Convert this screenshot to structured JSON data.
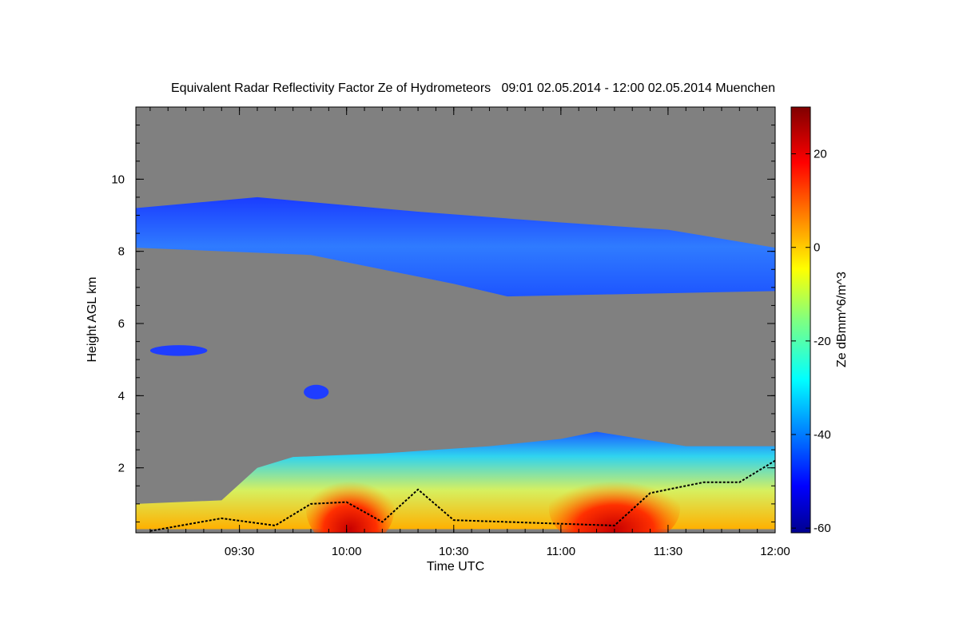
{
  "chart_data": {
    "type": "heatmap",
    "title": "Equivalent Radar Reflectivity Factor Ze of Hydrometeors   09:01 02.05.2014 - 12:00 02.05.2014 Muenchen",
    "xlabel": "Time UTC",
    "ylabel": "Height AGL km",
    "colorbar_label": "Ze dBmm^6/m^3",
    "x_range": [
      "09:01",
      "12:00"
    ],
    "x_ticks": [
      "09:30",
      "10:00",
      "10:30",
      "11:00",
      "11:30",
      "12:00"
    ],
    "y_range": [
      0.2,
      12
    ],
    "y_ticks": [
      2,
      4,
      6,
      8,
      10
    ],
    "colorbar_range": [
      -61,
      30
    ],
    "colorbar_ticks": [
      20,
      0,
      -20,
      -40,
      -60
    ],
    "colorbar_tick_labels": [
      "20",
      "0",
      "-20",
      "-40",
      "-60"
    ],
    "colormap": "jet",
    "background_color": "#808080",
    "regions": [
      {
        "name": "upper cloud layer",
        "time_start": "09:01",
        "time_end": "12:00",
        "base_km_start": 8.1,
        "base_km_end": 6.9,
        "top_km_start": 9.2,
        "top_km_end": 8.1,
        "ze_dbz_typical": -45
      },
      {
        "name": "small cloud",
        "time_start": "09:05",
        "time_end": "09:21",
        "base_km": 5.1,
        "top_km": 5.4,
        "ze_dbz_typical": -52
      },
      {
        "name": "small cloud",
        "time_start": "09:48",
        "time_end": "09:55",
        "base_km": 3.9,
        "top_km": 4.3,
        "ze_dbz_typical": -52
      },
      {
        "name": "low precipitation layer",
        "time_start": "09:01",
        "time_end": "12:00",
        "base_km": 0.3,
        "top_km_max": 3.0,
        "ze_dbz_max": 25
      },
      {
        "name": "precipitation core",
        "time_start": "09:52",
        "time_end": "10:10",
        "ze_dbz_typical": 15
      },
      {
        "name": "precipitation core",
        "time_start": "11:00",
        "time_end": "11:30",
        "ze_dbz_typical": 20
      }
    ],
    "black_line_km": [
      {
        "time": "09:05",
        "value": 0.25
      },
      {
        "time": "09:25",
        "value": 0.6
      },
      {
        "time": "09:40",
        "value": 0.4
      },
      {
        "time": "09:50",
        "value": 1.0
      },
      {
        "time": "10:00",
        "value": 1.05
      },
      {
        "time": "10:10",
        "value": 0.5
      },
      {
        "time": "10:20",
        "value": 1.4
      },
      {
        "time": "10:30",
        "value": 0.55
      },
      {
        "time": "11:00",
        "value": 0.45
      },
      {
        "time": "11:15",
        "value": 0.4
      },
      {
        "time": "11:25",
        "value": 1.3
      },
      {
        "time": "11:40",
        "value": 1.6
      },
      {
        "time": "11:50",
        "value": 1.6
      },
      {
        "time": "12:00",
        "value": 2.2
      }
    ]
  }
}
